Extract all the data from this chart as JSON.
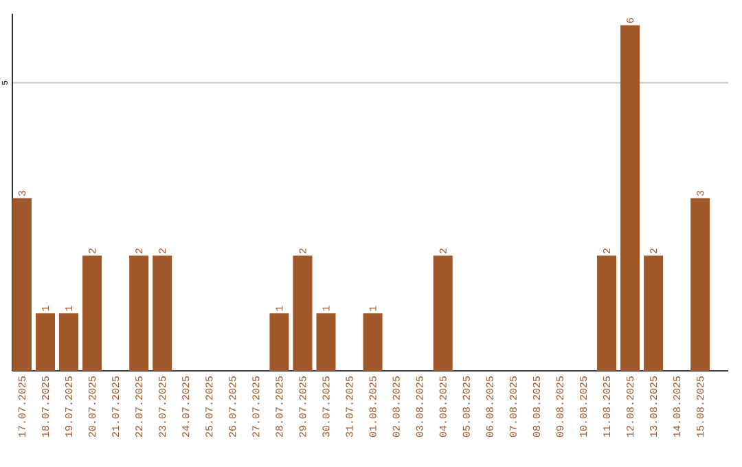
{
  "chart_data": {
    "type": "bar",
    "categories": [
      "17.07.2025",
      "18.07.2025",
      "19.07.2025",
      "20.07.2025",
      "21.07.2025",
      "22.07.2025",
      "23.07.2025",
      "24.07.2025",
      "25.07.2025",
      "26.07.2025",
      "27.07.2025",
      "28.07.2025",
      "29.07.2025",
      "30.07.2025",
      "31.07.2025",
      "01.08.2025",
      "02.08.2025",
      "03.08.2025",
      "04.08.2025",
      "05.08.2025",
      "06.08.2025",
      "07.08.2025",
      "08.08.2025",
      "09.08.2025",
      "10.08.2025",
      "11.08.2025",
      "12.08.2025",
      "13.08.2025",
      "14.08.2025",
      "15.08.2025"
    ],
    "values": [
      3,
      1,
      1,
      2,
      0,
      2,
      2,
      0,
      0,
      0,
      0,
      1,
      2,
      1,
      0,
      1,
      0,
      0,
      2,
      0,
      0,
      0,
      0,
      0,
      0,
      2,
      6,
      2,
      0,
      3
    ],
    "value_labels": [
      "3",
      "1",
      "1",
      "2",
      null,
      "2",
      "2",
      null,
      null,
      null,
      null,
      "1",
      "2",
      "1",
      null,
      "1",
      null,
      null,
      "2",
      null,
      null,
      null,
      null,
      null,
      null,
      "2",
      "6",
      "2",
      null,
      "3"
    ],
    "color": "#a0572a",
    "ylim": [
      0,
      6.2
    ],
    "yticks": [
      5
    ],
    "grid": "y"
  }
}
